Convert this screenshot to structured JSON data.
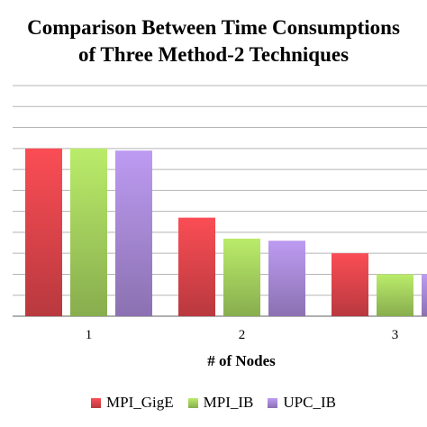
{
  "chart_data": {
    "type": "bar",
    "title_lines": [
      "Comparison Between Time Consumptions",
      "of Three Method-2 Techniques"
    ],
    "xlabel": "# of Nodes",
    "ylabel": "",
    "categories": [
      "1",
      "2",
      "3"
    ],
    "series": [
      {
        "name": "MPI_GigE",
        "values": [
          8.0,
          4.7,
          3.0
        ],
        "color": "#e0454c"
      },
      {
        "name": "MPI_IB",
        "values": [
          8.0,
          3.7,
          2.0
        ],
        "color": "#a6d35f"
      },
      {
        "name": "UPC_IB",
        "values": [
          7.9,
          3.6,
          2.0
        ],
        "color": "#a98ad8"
      }
    ],
    "ylim": [
      0,
      11
    ],
    "grid": true,
    "legend_position": "bottom"
  }
}
